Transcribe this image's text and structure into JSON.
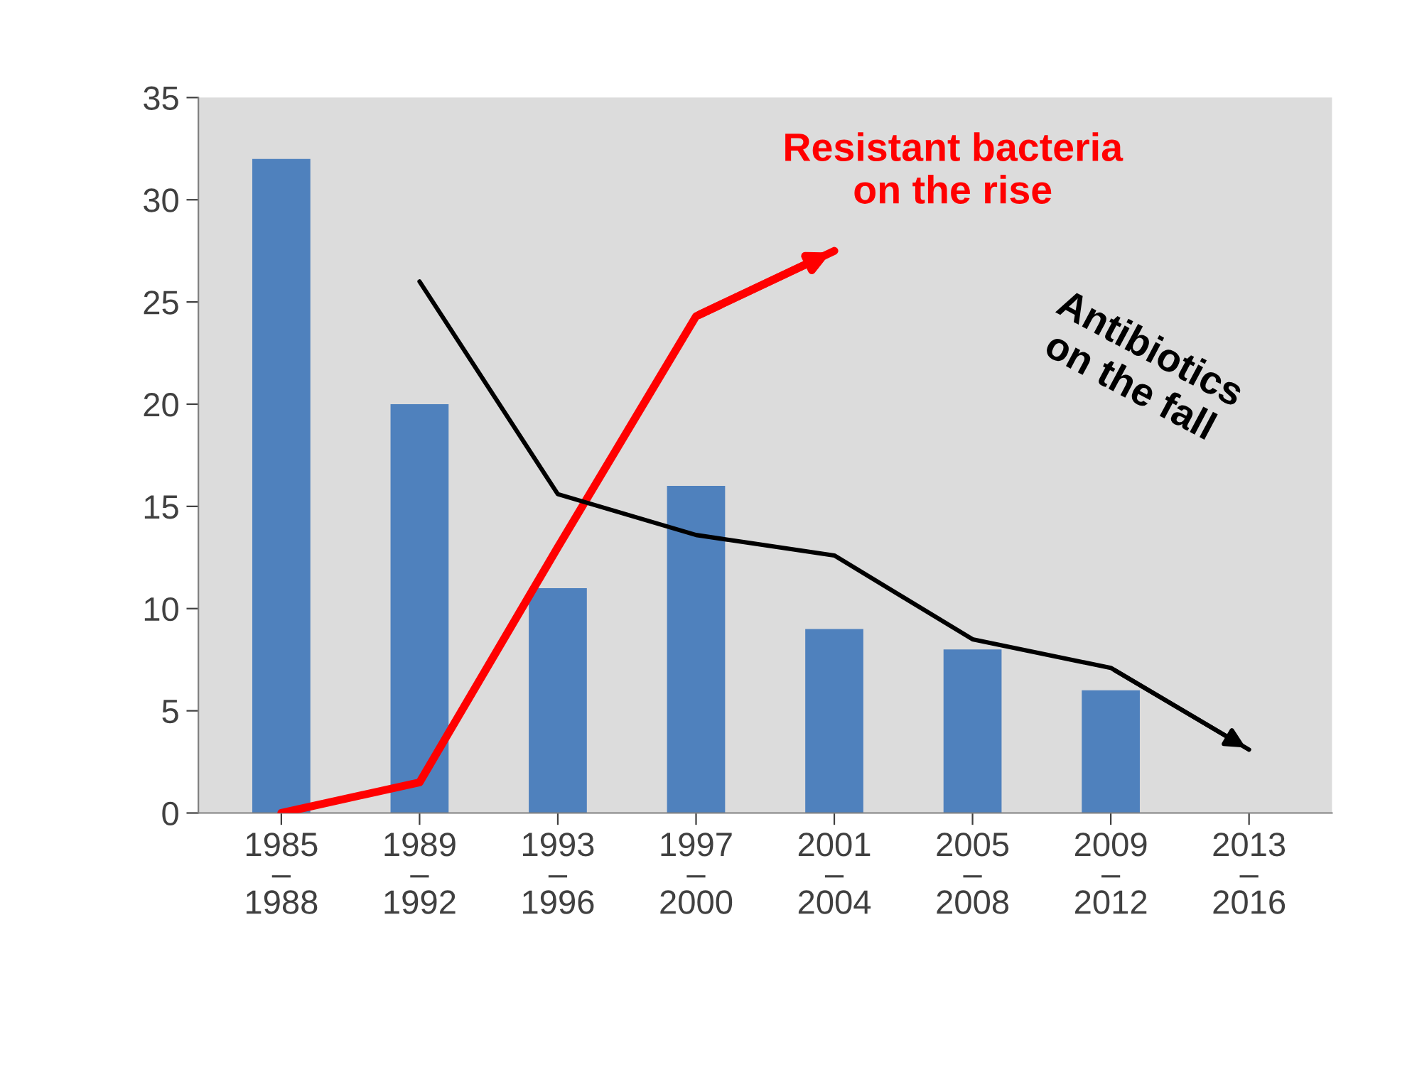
{
  "chart_data": {
    "type": "bar",
    "categories": [
      "1985\n–\n1988",
      "1989\n–\n1992",
      "1993\n–\n1996",
      "1997\n–\n2000",
      "2001\n–\n2004",
      "2005\n–\n2008",
      "2009\n–\n2012",
      "2013\n–\n2016"
    ],
    "values": [
      32,
      20,
      11,
      16,
      9,
      8,
      6,
      null
    ],
    "color": "#4f81bd",
    "series": [
      {
        "type": "line",
        "color": "#ff0000",
        "values": [
          0,
          1.5,
          13,
          24.3,
          27.5,
          null,
          null,
          null
        ]
      },
      {
        "type": "line",
        "color": "#000000",
        "values": [
          null,
          26,
          15.6,
          13.6,
          12.6,
          8.5,
          7.1,
          3.1
        ]
      }
    ],
    "ylim": [
      0,
      35
    ],
    "yticks": [
      0,
      5,
      10,
      15,
      20,
      25,
      30,
      35
    ],
    "grid": false,
    "legend": false,
    "annotations": [
      {
        "text": "Resistant bacteria\non the rise",
        "x": "2001\n–\n2004",
        "y": 27.5
      },
      "Antibiotics\non the fall"
    ]
  }
}
